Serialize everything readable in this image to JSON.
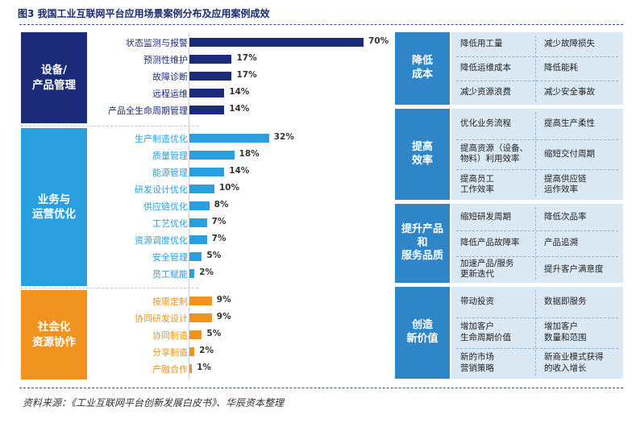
{
  "title": "图3 我国工业互联网平台应用场景案例分布及应用案例成效",
  "source": "资料来源：《工业互联网平台创新发展白皮书》、华辰资本整理",
  "chart_data": {
    "type": "bar",
    "orientation": "horizontal",
    "unit": "%",
    "xlim": [
      0,
      70
    ],
    "groups": [
      {
        "name": "设备/\n产品管理",
        "color": "#1c2a7a",
        "categories": [
          "状态监测与报警",
          "预测性维护",
          "故障诊断",
          "远程运维",
          "产品全生命周期管理"
        ],
        "values": [
          70,
          17,
          17,
          14,
          14
        ]
      },
      {
        "name": "业务与\n运营优化",
        "color": "#2a9fe0",
        "categories": [
          "生产制造优化",
          "质量管理",
          "能源管理",
          "研发设计优化",
          "供应链优化",
          "工艺优化",
          "资源调度优化",
          "安全管理",
          "员工赋能"
        ],
        "values": [
          32,
          18,
          14,
          10,
          8,
          7,
          7,
          5,
          2
        ]
      },
      {
        "name": "社会化\n资源协作",
        "color": "#f0921e",
        "categories": [
          "按需定制",
          "协同研发设计",
          "协同制造",
          "分享制造",
          "产融合作"
        ],
        "values": [
          9,
          9,
          5,
          2,
          1
        ]
      }
    ],
    "labels": [
      "70%",
      "17%",
      "17%",
      "14%",
      "14%",
      "32%",
      "18%",
      "14%",
      "10%",
      "8%",
      "7%",
      "7%",
      "5%",
      "2%",
      "9%",
      "9%",
      "5%",
      "2%",
      "1%"
    ]
  },
  "effects": [
    {
      "name": "降低\n成本",
      "items": [
        [
          "降低用工量",
          "减少故障损失"
        ],
        [
          "降低运维成本",
          "降低能耗"
        ],
        [
          "减少资源浪费",
          "减少安全事故"
        ]
      ]
    },
    {
      "name": "提高\n效率",
      "items": [
        [
          "优化业务流程",
          "提高生产柔性"
        ],
        [
          "提高资源（设备、\n物料）利用效率",
          "缩短交付周期"
        ],
        [
          "提高员工\n工作效率",
          "提高供应链\n运作效率"
        ]
      ]
    },
    {
      "name": "提升产品\n和\n服务品质",
      "items": [
        [
          "缩短研发周期",
          "降低次品率"
        ],
        [
          "降低产品故障率",
          "产品追溯"
        ],
        [
          "加速产品/服务\n更新迭代",
          "提升客户满意度"
        ]
      ]
    },
    {
      "name": "创造\n新价值",
      "items": [
        [
          "带动投资",
          "数据即服务"
        ],
        [
          "增加客户\n生命周期价值",
          "增加客户\n数量和范围"
        ],
        [
          "新的市场\n营销策略",
          "新商业模式获得\n的收入增长"
        ]
      ]
    }
  ]
}
